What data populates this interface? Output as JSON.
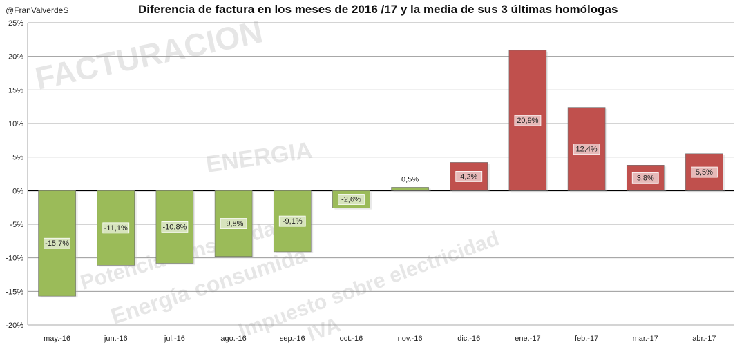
{
  "header": {
    "handle": "@FranValverdeS",
    "title": "Diferencia de factura en los meses de 2016 /17 y la media de sus 3 últimas homólogas"
  },
  "watermark": {
    "lines": [
      "FACTURACION",
      "ENERGIA",
      "Potencia consumida",
      "Energía consumida",
      "Impuesto sobre electricidad",
      "IVA"
    ]
  },
  "colors": {
    "negative_fill": "#9bbb59",
    "negative_label_bg": "#d7e4bd",
    "positive_fill": "#c0504d",
    "positive_label_bg": "#e6b9b8"
  },
  "chart_data": {
    "type": "bar",
    "title": "Diferencia de factura en los meses de 2016 /17 y la media de sus 3 últimas homólogas",
    "xlabel": "",
    "ylabel": "",
    "ylim": [
      -20,
      25
    ],
    "ytick_step": 5,
    "ytick_labels": [
      "25%",
      "20%",
      "15%",
      "10%",
      "5%",
      "0%",
      "-5%",
      "-10%",
      "-15%",
      "-20%"
    ],
    "categories": [
      "may.-16",
      "jun.-16",
      "jul.-16",
      "ago.-16",
      "sep.-16",
      "oct.-16",
      "nov.-16",
      "dic.-16",
      "ene.-17",
      "feb.-17",
      "mar.-17",
      "abr.-17"
    ],
    "values": [
      -15.7,
      -11.1,
      -10.8,
      -9.8,
      -9.1,
      -2.6,
      0.5,
      4.2,
      20.9,
      12.4,
      3.8,
      5.5
    ],
    "data_labels": [
      "-15,7%",
      "-11,1%",
      "-10,8%",
      "-9,8%",
      "-9,1%",
      "-2,6%",
      "0,5%",
      "4,2%",
      "20,9%",
      "12,4%",
      "3,8%",
      "5,5%"
    ],
    "bar_colors": [
      "green",
      "green",
      "green",
      "green",
      "green",
      "green",
      "green",
      "red",
      "red",
      "red",
      "red",
      "red"
    ],
    "grid": true,
    "legend": "none"
  }
}
